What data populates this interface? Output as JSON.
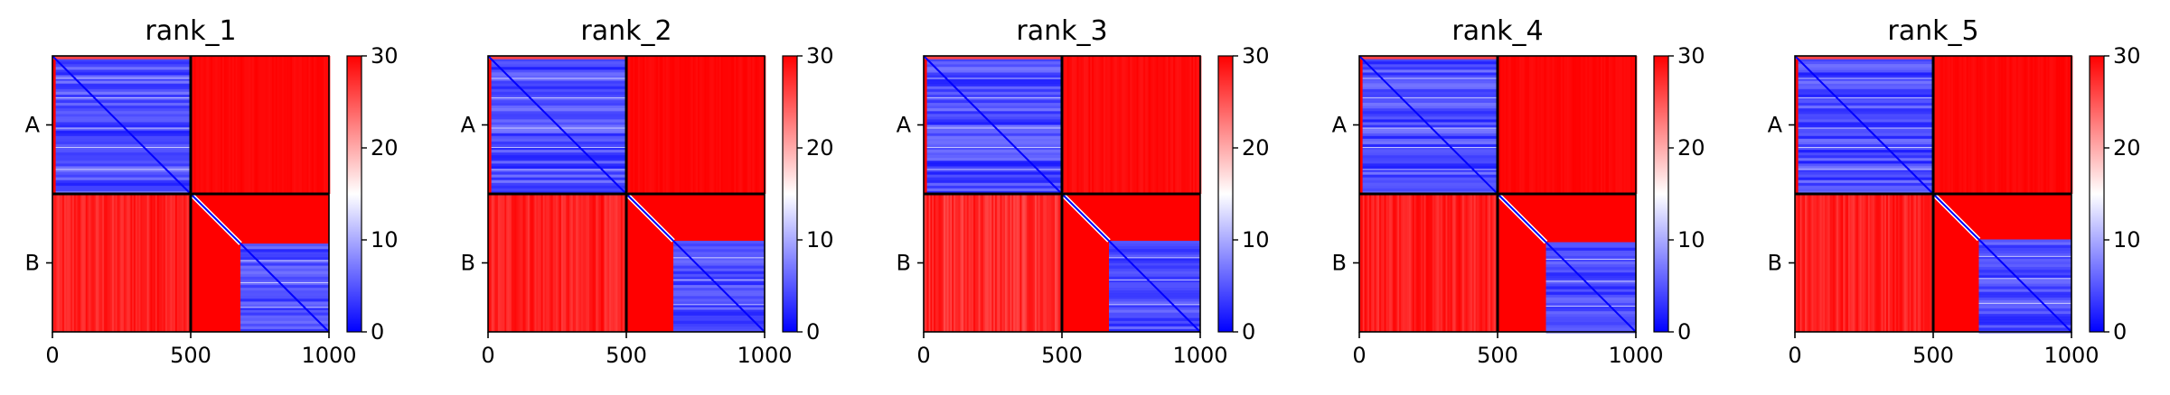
{
  "chart_data": [
    {
      "type": "heatmap",
      "title": "rank_1",
      "xlabel": "",
      "ylabel": "",
      "xlim": [
        0,
        1000
      ],
      "x_ticks": [
        "0",
        "500",
        "1000"
      ],
      "y_ticks": [
        "A",
        "B"
      ],
      "chains": [
        "A",
        "B"
      ],
      "chain_boundary": 500,
      "colorbar": {
        "min": 0,
        "max": 30,
        "ticks": [
          "0",
          "10",
          "20",
          "30"
        ],
        "colormap": "bwr"
      },
      "blocks": [
        {
          "rows": "A",
          "cols": "A",
          "mean_value": 4,
          "value_range": [
            0,
            8
          ]
        },
        {
          "rows": "A",
          "cols": "B",
          "mean_value": 30,
          "value_range": [
            28,
            30
          ]
        },
        {
          "rows": "B",
          "cols": "A",
          "mean_value": 29,
          "value_range": [
            22,
            30
          ]
        },
        {
          "rows": "B",
          "cols": "B",
          "mean_value": 5,
          "value_range": [
            0,
            30
          ]
        }
      ],
      "unaligned_n_terminal_B": 180
    },
    {
      "type": "heatmap",
      "title": "rank_2",
      "xlabel": "",
      "ylabel": "",
      "xlim": [
        0,
        1000
      ],
      "x_ticks": [
        "0",
        "500",
        "1000"
      ],
      "y_ticks": [
        "A",
        "B"
      ],
      "chains": [
        "A",
        "B"
      ],
      "chain_boundary": 500,
      "colorbar": {
        "min": 0,
        "max": 30,
        "ticks": [
          "0",
          "10",
          "20",
          "30"
        ],
        "colormap": "bwr"
      },
      "blocks": [
        {
          "rows": "A",
          "cols": "A",
          "mean_value": 4,
          "value_range": [
            0,
            8
          ]
        },
        {
          "rows": "A",
          "cols": "B",
          "mean_value": 30,
          "value_range": [
            28,
            30
          ]
        },
        {
          "rows": "B",
          "cols": "A",
          "mean_value": 29,
          "value_range": [
            22,
            30
          ]
        },
        {
          "rows": "B",
          "cols": "B",
          "mean_value": 5,
          "value_range": [
            0,
            30
          ]
        }
      ],
      "unaligned_n_terminal_B": 170
    },
    {
      "type": "heatmap",
      "title": "rank_3",
      "xlabel": "",
      "ylabel": "",
      "xlim": [
        0,
        1000
      ],
      "x_ticks": [
        "0",
        "500",
        "1000"
      ],
      "y_ticks": [
        "A",
        "B"
      ],
      "chains": [
        "A",
        "B"
      ],
      "chain_boundary": 500,
      "colorbar": {
        "min": 0,
        "max": 30,
        "ticks": [
          "0",
          "10",
          "20",
          "30"
        ],
        "colormap": "bwr"
      },
      "blocks": [
        {
          "rows": "A",
          "cols": "A",
          "mean_value": 4,
          "value_range": [
            0,
            8
          ]
        },
        {
          "rows": "A",
          "cols": "B",
          "mean_value": 30,
          "value_range": [
            27,
            30
          ]
        },
        {
          "rows": "B",
          "cols": "A",
          "mean_value": 28,
          "value_range": [
            20,
            30
          ]
        },
        {
          "rows": "B",
          "cols": "B",
          "mean_value": 5,
          "value_range": [
            0,
            30
          ]
        }
      ],
      "unaligned_n_terminal_B": 170
    },
    {
      "type": "heatmap",
      "title": "rank_4",
      "xlabel": "",
      "ylabel": "",
      "xlim": [
        0,
        1000
      ],
      "x_ticks": [
        "0",
        "500",
        "1000"
      ],
      "y_ticks": [
        "A",
        "B"
      ],
      "chains": [
        "A",
        "B"
      ],
      "chain_boundary": 500,
      "colorbar": {
        "min": 0,
        "max": 30,
        "ticks": [
          "0",
          "10",
          "20",
          "30"
        ],
        "colormap": "bwr"
      },
      "blocks": [
        {
          "rows": "A",
          "cols": "A",
          "mean_value": 4,
          "value_range": [
            0,
            8
          ]
        },
        {
          "rows": "A",
          "cols": "B",
          "mean_value": 30,
          "value_range": [
            28,
            30
          ]
        },
        {
          "rows": "B",
          "cols": "A",
          "mean_value": 29,
          "value_range": [
            22,
            30
          ]
        },
        {
          "rows": "B",
          "cols": "B",
          "mean_value": 5,
          "value_range": [
            0,
            30
          ]
        }
      ],
      "unaligned_n_terminal_B": 175
    },
    {
      "type": "heatmap",
      "title": "rank_5",
      "xlabel": "",
      "ylabel": "",
      "xlim": [
        0,
        1000
      ],
      "x_ticks": [
        "0",
        "500",
        "1000"
      ],
      "y_ticks": [
        "A",
        "B"
      ],
      "chains": [
        "A",
        "B"
      ],
      "chain_boundary": 500,
      "colorbar": {
        "min": 0,
        "max": 30,
        "ticks": [
          "0",
          "10",
          "20",
          "30"
        ],
        "colormap": "bwr"
      },
      "blocks": [
        {
          "rows": "A",
          "cols": "A",
          "mean_value": 4,
          "value_range": [
            0,
            8
          ]
        },
        {
          "rows": "A",
          "cols": "B",
          "mean_value": 30,
          "value_range": [
            28,
            30
          ]
        },
        {
          "rows": "B",
          "cols": "A",
          "mean_value": 29,
          "value_range": [
            22,
            30
          ]
        },
        {
          "rows": "B",
          "cols": "B",
          "mean_value": 5,
          "value_range": [
            0,
            30
          ]
        }
      ],
      "unaligned_n_terminal_B": 165
    }
  ]
}
